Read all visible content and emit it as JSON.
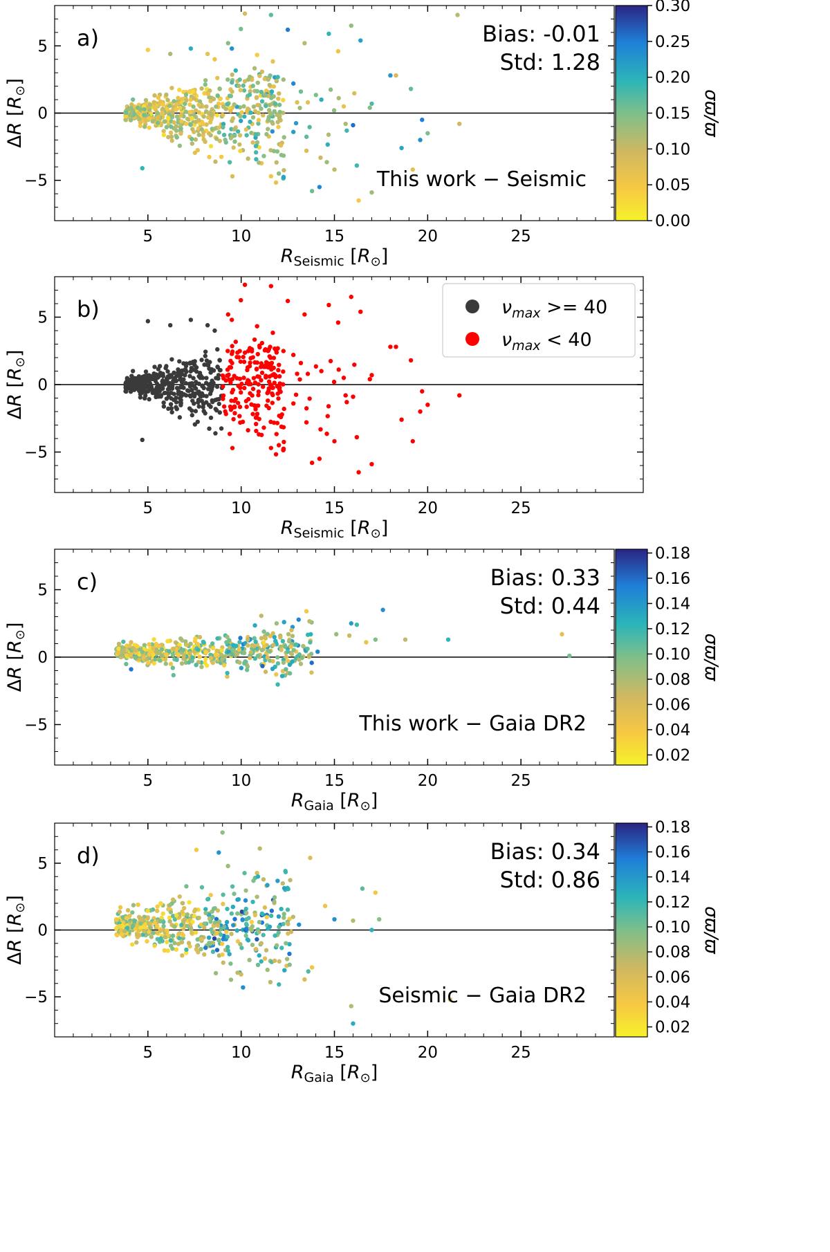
{
  "chart_data": [
    {
      "type": "scatter",
      "panel_label": "a)",
      "xlabel": "R_Seismic [R_⊙]",
      "xlabel_parts": {
        "main": "R",
        "sub": "Seismic",
        "unit_open": "[",
        "unit_main": "R",
        "unit_sub": "⊙",
        "unit_close": "]"
      },
      "ylabel": "ΔR [R_⊙]",
      "xlim": [
        0,
        30
      ],
      "ylim": [
        -8,
        8
      ],
      "xticks": [
        5,
        10,
        15,
        20,
        25
      ],
      "yticks": [
        -5,
        0,
        5
      ],
      "hline": 0,
      "annotations": {
        "bias": "Bias: -0.01",
        "std": "Std: 1.28",
        "comparison": "This work − Seismic"
      },
      "colorbar": {
        "label": "σϖ/ϖ",
        "min": 0.0,
        "max": 0.3,
        "ticks": [
          "0.00",
          "0.05",
          "0.10",
          "0.15",
          "0.20",
          "0.25",
          "0.30"
        ]
      },
      "seed": 11
    },
    {
      "type": "scatter",
      "panel_label": "b)",
      "xlabel": "R_Seismic [R_⊙]",
      "xlabel_parts": {
        "main": "R",
        "sub": "Seismic",
        "unit_open": "[",
        "unit_main": "R",
        "unit_sub": "⊙",
        "unit_close": "]"
      },
      "ylabel": "ΔR [R_⊙]",
      "xlim": [
        0,
        30
      ],
      "ylim": [
        -8,
        8
      ],
      "xticks": [
        5,
        10,
        15,
        20,
        25
      ],
      "yticks": [
        -5,
        0,
        5
      ],
      "hline": 0,
      "legend": {
        "placement": "top-right",
        "entries": [
          {
            "label": "ν_max >= 40",
            "symbol": "ν",
            "sub": "max",
            "rest": " >= 40",
            "color": "#3a3a3a"
          },
          {
            "label": "ν_max < 40",
            "symbol": "ν",
            "sub": "max",
            "rest": " < 40",
            "color": "#ff0000"
          }
        ]
      },
      "seed": 11
    },
    {
      "type": "scatter",
      "panel_label": "c)",
      "xlabel": "R_Gaia [R_⊙]",
      "xlabel_parts": {
        "main": "R",
        "sub": "Gaia",
        "unit_open": "[",
        "unit_main": "R",
        "unit_sub": "⊙",
        "unit_close": "]"
      },
      "ylabel": "ΔR [R_⊙]",
      "xlim": [
        0,
        30
      ],
      "ylim": [
        -8,
        8
      ],
      "xticks": [
        5,
        10,
        15,
        20,
        25
      ],
      "yticks": [
        -5,
        0,
        5
      ],
      "hline": 0,
      "annotations": {
        "bias": "Bias: 0.33",
        "std": "Std: 0.44",
        "comparison": "This work − Gaia DR2"
      },
      "colorbar": {
        "label": "σϖ/ϖ",
        "min": 0.012,
        "max": 0.183,
        "ticks": [
          "0.02",
          "0.04",
          "0.06",
          "0.08",
          "0.10",
          "0.12",
          "0.14",
          "0.16",
          "0.18"
        ]
      },
      "seed": 23
    },
    {
      "type": "scatter",
      "panel_label": "d)",
      "xlabel": "R_Gaia [R_⊙]",
      "xlabel_parts": {
        "main": "R",
        "sub": "Gaia",
        "unit_open": "[",
        "unit_main": "R",
        "unit_sub": "⊙",
        "unit_close": "]"
      },
      "ylabel": "ΔR [R_⊙]",
      "xlim": [
        0,
        30
      ],
      "ylim": [
        -8,
        8
      ],
      "xticks": [
        5,
        10,
        15,
        20,
        25
      ],
      "yticks": [
        -5,
        0,
        5
      ],
      "hline": 0,
      "annotations": {
        "bias": "Bias: 0.34",
        "std": "Std: 0.86",
        "comparison": "Seismic − Gaia DR2"
      },
      "colorbar": {
        "label": "σϖ/ϖ",
        "min": 0.012,
        "max": 0.183,
        "ticks": [
          "0.02",
          "0.04",
          "0.06",
          "0.08",
          "0.10",
          "0.12",
          "0.14",
          "0.16",
          "0.18"
        ]
      },
      "seed": 37
    }
  ]
}
